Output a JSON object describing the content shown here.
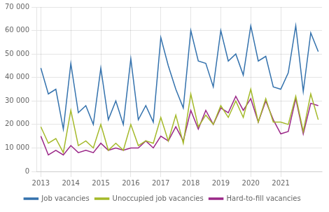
{
  "chart_data": {
    "type": "line",
    "categories": [
      "2013",
      null,
      null,
      null,
      "2014",
      null,
      null,
      null,
      "2015",
      null,
      null,
      null,
      "2016",
      null,
      null,
      null,
      "2017",
      null,
      null,
      null,
      "2018",
      null,
      null,
      null,
      "2019",
      null,
      null,
      null,
      "2020",
      null,
      null,
      null,
      "2021",
      null,
      null,
      null,
      null,
      null
    ],
    "series": [
      {
        "name": "Job vacancies",
        "color": "#3472AD",
        "values": [
          44000,
          33000,
          35000,
          18000,
          46000,
          25000,
          28000,
          20000,
          44000,
          22000,
          30000,
          20000,
          48000,
          22000,
          28000,
          21000,
          57000,
          45000,
          35000,
          27000,
          60000,
          47000,
          46000,
          36000,
          60000,
          47000,
          50000,
          41000,
          62000,
          47000,
          49000,
          36000,
          35000,
          42000,
          62000,
          34000,
          59000,
          51000
        ]
      },
      {
        "name": "Unoccupied job vacancies",
        "color": "#A4B929",
        "values": [
          19000,
          12000,
          14000,
          8000,
          26000,
          11000,
          13000,
          10000,
          20000,
          9000,
          12000,
          9000,
          20000,
          11000,
          13000,
          12000,
          23000,
          13000,
          24000,
          12000,
          33000,
          19000,
          24000,
          20000,
          28000,
          23000,
          30000,
          23000,
          35000,
          21000,
          31000,
          21000,
          21000,
          20000,
          32000,
          17000,
          33000,
          22000
        ]
      },
      {
        "name": "Hard-to-fill vacancies",
        "color": "#9B2888",
        "values": [
          15000,
          7000,
          9000,
          7000,
          11000,
          8000,
          9000,
          8000,
          12000,
          9000,
          10000,
          9000,
          10000,
          10000,
          13000,
          10000,
          15000,
          13000,
          19000,
          13000,
          26000,
          18000,
          26000,
          20000,
          27000,
          25000,
          32000,
          26000,
          31000,
          21000,
          30000,
          22000,
          16000,
          17000,
          31000,
          16000,
          29000,
          28000
        ]
      }
    ],
    "ylim": [
      0,
      70000
    ],
    "yticks": [
      0,
      {
        "value": 10000,
        "label": "10 000"
      },
      {
        "value": 20000,
        "label": "20 000"
      },
      {
        "value": 30000,
        "label": "30 000"
      },
      {
        "value": 40000,
        "label": "40 000"
      },
      {
        "value": 50000,
        "label": "50 000"
      },
      {
        "value": 60000,
        "label": "60 000"
      },
      {
        "value": 70000,
        "label": "70 000"
      }
    ],
    "grid": true,
    "legend": "bottom"
  }
}
